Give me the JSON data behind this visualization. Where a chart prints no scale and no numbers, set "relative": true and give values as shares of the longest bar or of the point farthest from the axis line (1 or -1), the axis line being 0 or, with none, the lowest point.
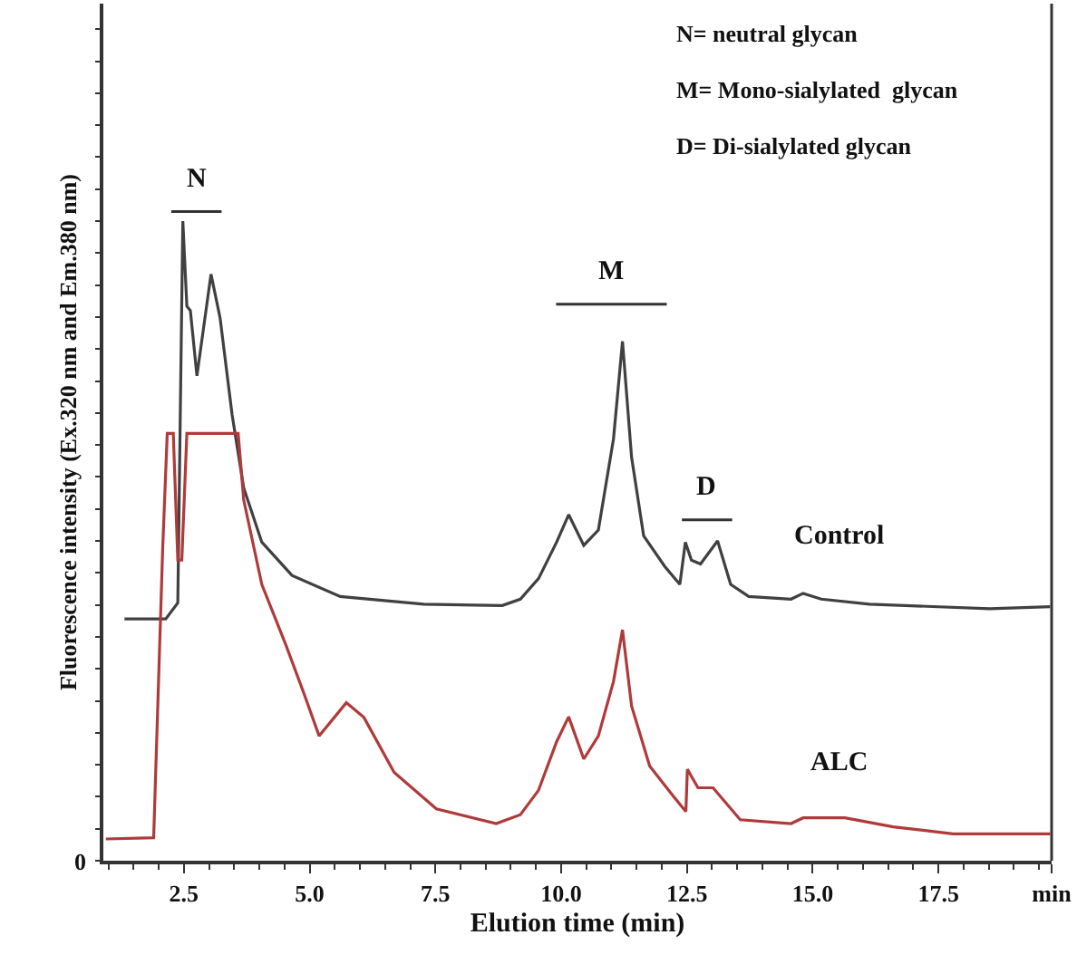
{
  "chart_data": {
    "type": "line",
    "relative": true,
    "xlabel": "Elution time (min)",
    "ylabel": "Fluorescence intensity (Ex.320 nm and Em.380 nm)",
    "xlim": [
      0.9,
      19.75
    ],
    "xticks": [
      {
        "value": 2.5,
        "label": "2.5"
      },
      {
        "value": 5.0,
        "label": "5.0"
      },
      {
        "value": 7.5,
        "label": "7.5"
      },
      {
        "value": 10.0,
        "label": "10.0"
      },
      {
        "value": 12.5,
        "label": "12.5"
      },
      {
        "value": 15.0,
        "label": "15.0"
      },
      {
        "value": 17.5,
        "label": "17.5"
      },
      {
        "value": 19.75,
        "label": "min"
      }
    ],
    "grid": false,
    "legend": "right",
    "marker": "none",
    "line_style": "solid",
    "series": [
      {
        "name": "Control",
        "color": "#404040",
        "x": [
          1.32,
          2.14,
          2.38,
          2.48,
          2.56,
          2.63,
          2.76,
          3.04,
          3.22,
          3.46,
          3.69,
          4.05,
          4.65,
          5.61,
          7.27,
          8.83,
          9.19,
          9.55,
          9.91,
          10.15,
          10.45,
          10.74,
          11.04,
          11.22,
          11.4,
          11.64,
          12.06,
          12.36,
          12.47,
          12.59,
          12.77,
          13.11,
          13.37,
          13.73,
          14.57,
          14.81,
          15.17,
          16.13,
          18.52,
          19.72
        ],
        "values": [
          0.378,
          0.378,
          0.403,
          1.0,
          0.867,
          0.86,
          0.758,
          0.917,
          0.849,
          0.697,
          0.583,
          0.498,
          0.446,
          0.413,
          0.401,
          0.399,
          0.409,
          0.441,
          0.498,
          0.541,
          0.493,
          0.517,
          0.659,
          0.812,
          0.631,
          0.508,
          0.46,
          0.432,
          0.498,
          0.47,
          0.464,
          0.5,
          0.432,
          0.413,
          0.409,
          0.418,
          0.409,
          0.401,
          0.394,
          0.397
        ]
      },
      {
        "name": "ALC",
        "color": "#b03a3a",
        "x": [
          0.95,
          1.9,
          2.08,
          2.17,
          2.29,
          2.38,
          2.46,
          2.56,
          3.58,
          3.69,
          4.05,
          4.53,
          4.89,
          5.19,
          5.73,
          6.08,
          6.68,
          7.52,
          8.71,
          9.19,
          9.55,
          9.91,
          10.15,
          10.45,
          10.74,
          11.04,
          11.22,
          11.4,
          11.76,
          12.24,
          12.48,
          12.51,
          12.72,
          13.02,
          13.56,
          14.57,
          14.81,
          15.64,
          16.6,
          17.79,
          19.72
        ],
        "values": [
          0.034,
          0.036,
          0.489,
          0.668,
          0.668,
          0.47,
          0.47,
          0.668,
          0.668,
          0.564,
          0.432,
          0.337,
          0.261,
          0.195,
          0.247,
          0.224,
          0.138,
          0.081,
          0.058,
          0.072,
          0.11,
          0.186,
          0.225,
          0.159,
          0.195,
          0.28,
          0.361,
          0.242,
          0.148,
          0.1,
          0.077,
          0.143,
          0.114,
          0.114,
          0.064,
          0.058,
          0.067,
          0.067,
          0.053,
          0.042,
          0.042
        ]
      }
    ],
    "annotations": [
      "N= neutral glycan",
      "M= Mono-sialylated  glycan",
      "D= Di-sialylated glycan",
      "N",
      "M",
      "D",
      "0"
    ]
  }
}
